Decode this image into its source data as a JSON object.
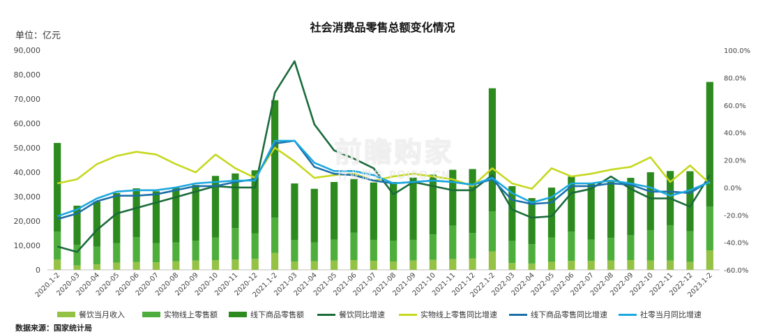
{
  "unit_label": "单位：亿元",
  "source": "数据来源：国家统计局",
  "watermark": {
    "main": "前瞻购家",
    "sub": "行业报告 POIPO.CN"
  },
  "colors": {
    "bar_catering": "#94c244",
    "bar_online": "#4eae3c",
    "bar_offline": "#2d8a1e",
    "line_catering": "#1a6b3a",
    "line_online": "#c5d81e",
    "line_offline": "#1b6ea8",
    "line_total": "#1aa7e0"
  },
  "chart_data": {
    "type": "bar",
    "title": "社会消费品零售总额变化情况",
    "categories": [
      "2020.1-2",
      "2020-03",
      "2020-04",
      "2020-05",
      "2020-06",
      "2020-07",
      "2020-08",
      "2020-09",
      "2020-10",
      "2020-11",
      "2020-12",
      "2021.1-2",
      "2021-03",
      "2021-04",
      "2021-05",
      "2021-06",
      "2021-07",
      "2021-08",
      "2021-09",
      "2021-10",
      "2021-11",
      "2021-12",
      "2022.1-2",
      "2022-03",
      "2022-04",
      "2022-05",
      "2022-06",
      "2022-07",
      "2022-08",
      "2022-09",
      "2022-10",
      "2022-11",
      "2022-12",
      "2023.1-2"
    ],
    "y_left": {
      "ticks": [
        "0",
        "10,000",
        "20,000",
        "30,000",
        "40,000",
        "50,000",
        "60,000",
        "70,000",
        "80,000",
        "90,000"
      ],
      "range": [
        0,
        90000
      ]
    },
    "y_right": {
      "ticks": [
        "-60.0%",
        "-40.0%",
        "-20.0%",
        "0.0%",
        "20.0%",
        "40.0%",
        "60.0%",
        "80.0%",
        "100.0%"
      ],
      "range": [
        -60,
        100
      ]
    },
    "series": [
      {
        "name": "餐饮当月收入",
        "kind": "bar",
        "values": [
          4200,
          1800,
          2300,
          3000,
          3200,
          3100,
          3500,
          3800,
          4000,
          4200,
          4500,
          7000,
          3400,
          3500,
          3800,
          4000,
          3700,
          3400,
          3800,
          4100,
          4400,
          4700,
          7500,
          2800,
          2600,
          3300,
          3700,
          3700,
          3800,
          4000,
          3800,
          3800,
          3300,
          8000
        ]
      },
      {
        "name": "实物线上零售额",
        "kind": "bar",
        "values": [
          11500,
          8500,
          7200,
          8000,
          10200,
          7800,
          7700,
          8200,
          9300,
          12900,
          10400,
          14400,
          8800,
          7700,
          8600,
          11200,
          8600,
          8600,
          8500,
          10400,
          13700,
          10400,
          16500,
          9000,
          7900,
          10000,
          12000,
          8700,
          9300,
          10200,
          12500,
          14500,
          12500,
          18000
        ]
      },
      {
        "name": "线下商品零售额",
        "kind": "bar",
        "values": [
          36300,
          16000,
          18500,
          20500,
          20000,
          21300,
          22500,
          22800,
          25200,
          22400,
          25900,
          48100,
          23200,
          22000,
          23600,
          22200,
          23500,
          24000,
          25500,
          24500,
          22900,
          26200,
          50400,
          22500,
          18900,
          20400,
          22500,
          23100,
          23000,
          23500,
          23700,
          22200,
          24600,
          51000
        ]
      },
      {
        "name": "餐饮同比增速",
        "kind": "line",
        "values": [
          -43,
          -47,
          -31,
          -19,
          -15,
          -11,
          -7,
          -3,
          1,
          0,
          0,
          69,
          92,
          46,
          27,
          21,
          14,
          -5,
          4,
          1,
          -2,
          -2,
          9,
          -16,
          -22,
          -21,
          -4,
          -1,
          8,
          -1,
          -8,
          -8,
          -14,
          9
        ]
      },
      {
        "name": "实物线上零售同比增速",
        "kind": "line",
        "values": [
          3,
          6,
          17,
          23,
          26,
          24,
          17,
          11,
          24,
          14,
          7,
          29,
          19,
          7,
          9,
          10,
          5,
          8,
          10,
          8,
          6,
          1,
          14,
          3,
          -1,
          14,
          8,
          10,
          13,
          15,
          22,
          4,
          16,
          3
        ]
      },
      {
        "name": "线下商品零售同比增速",
        "kind": "line",
        "values": [
          -23,
          -19,
          -10,
          -6,
          -6,
          -5,
          -2,
          1,
          1,
          4,
          6,
          32,
          34,
          15,
          10,
          9,
          5,
          3,
          4,
          5,
          4,
          2,
          6,
          -9,
          -12,
          -11,
          1,
          1,
          3,
          2,
          -3,
          -3,
          -4,
          5
        ]
      },
      {
        "name": "社零当月同比增速",
        "kind": "line",
        "values": [
          -21,
          -16,
          -8,
          -3,
          -2,
          -2,
          0,
          3,
          4,
          5,
          5,
          34,
          34,
          18,
          12,
          12,
          9,
          3,
          4,
          5,
          4,
          2,
          7,
          -4,
          -11,
          -7,
          3,
          3,
          5,
          3,
          0,
          -6,
          -2,
          4
        ]
      }
    ],
    "xlabel": "",
    "ylabel": "",
    "grid": false,
    "legend": "bottom"
  }
}
